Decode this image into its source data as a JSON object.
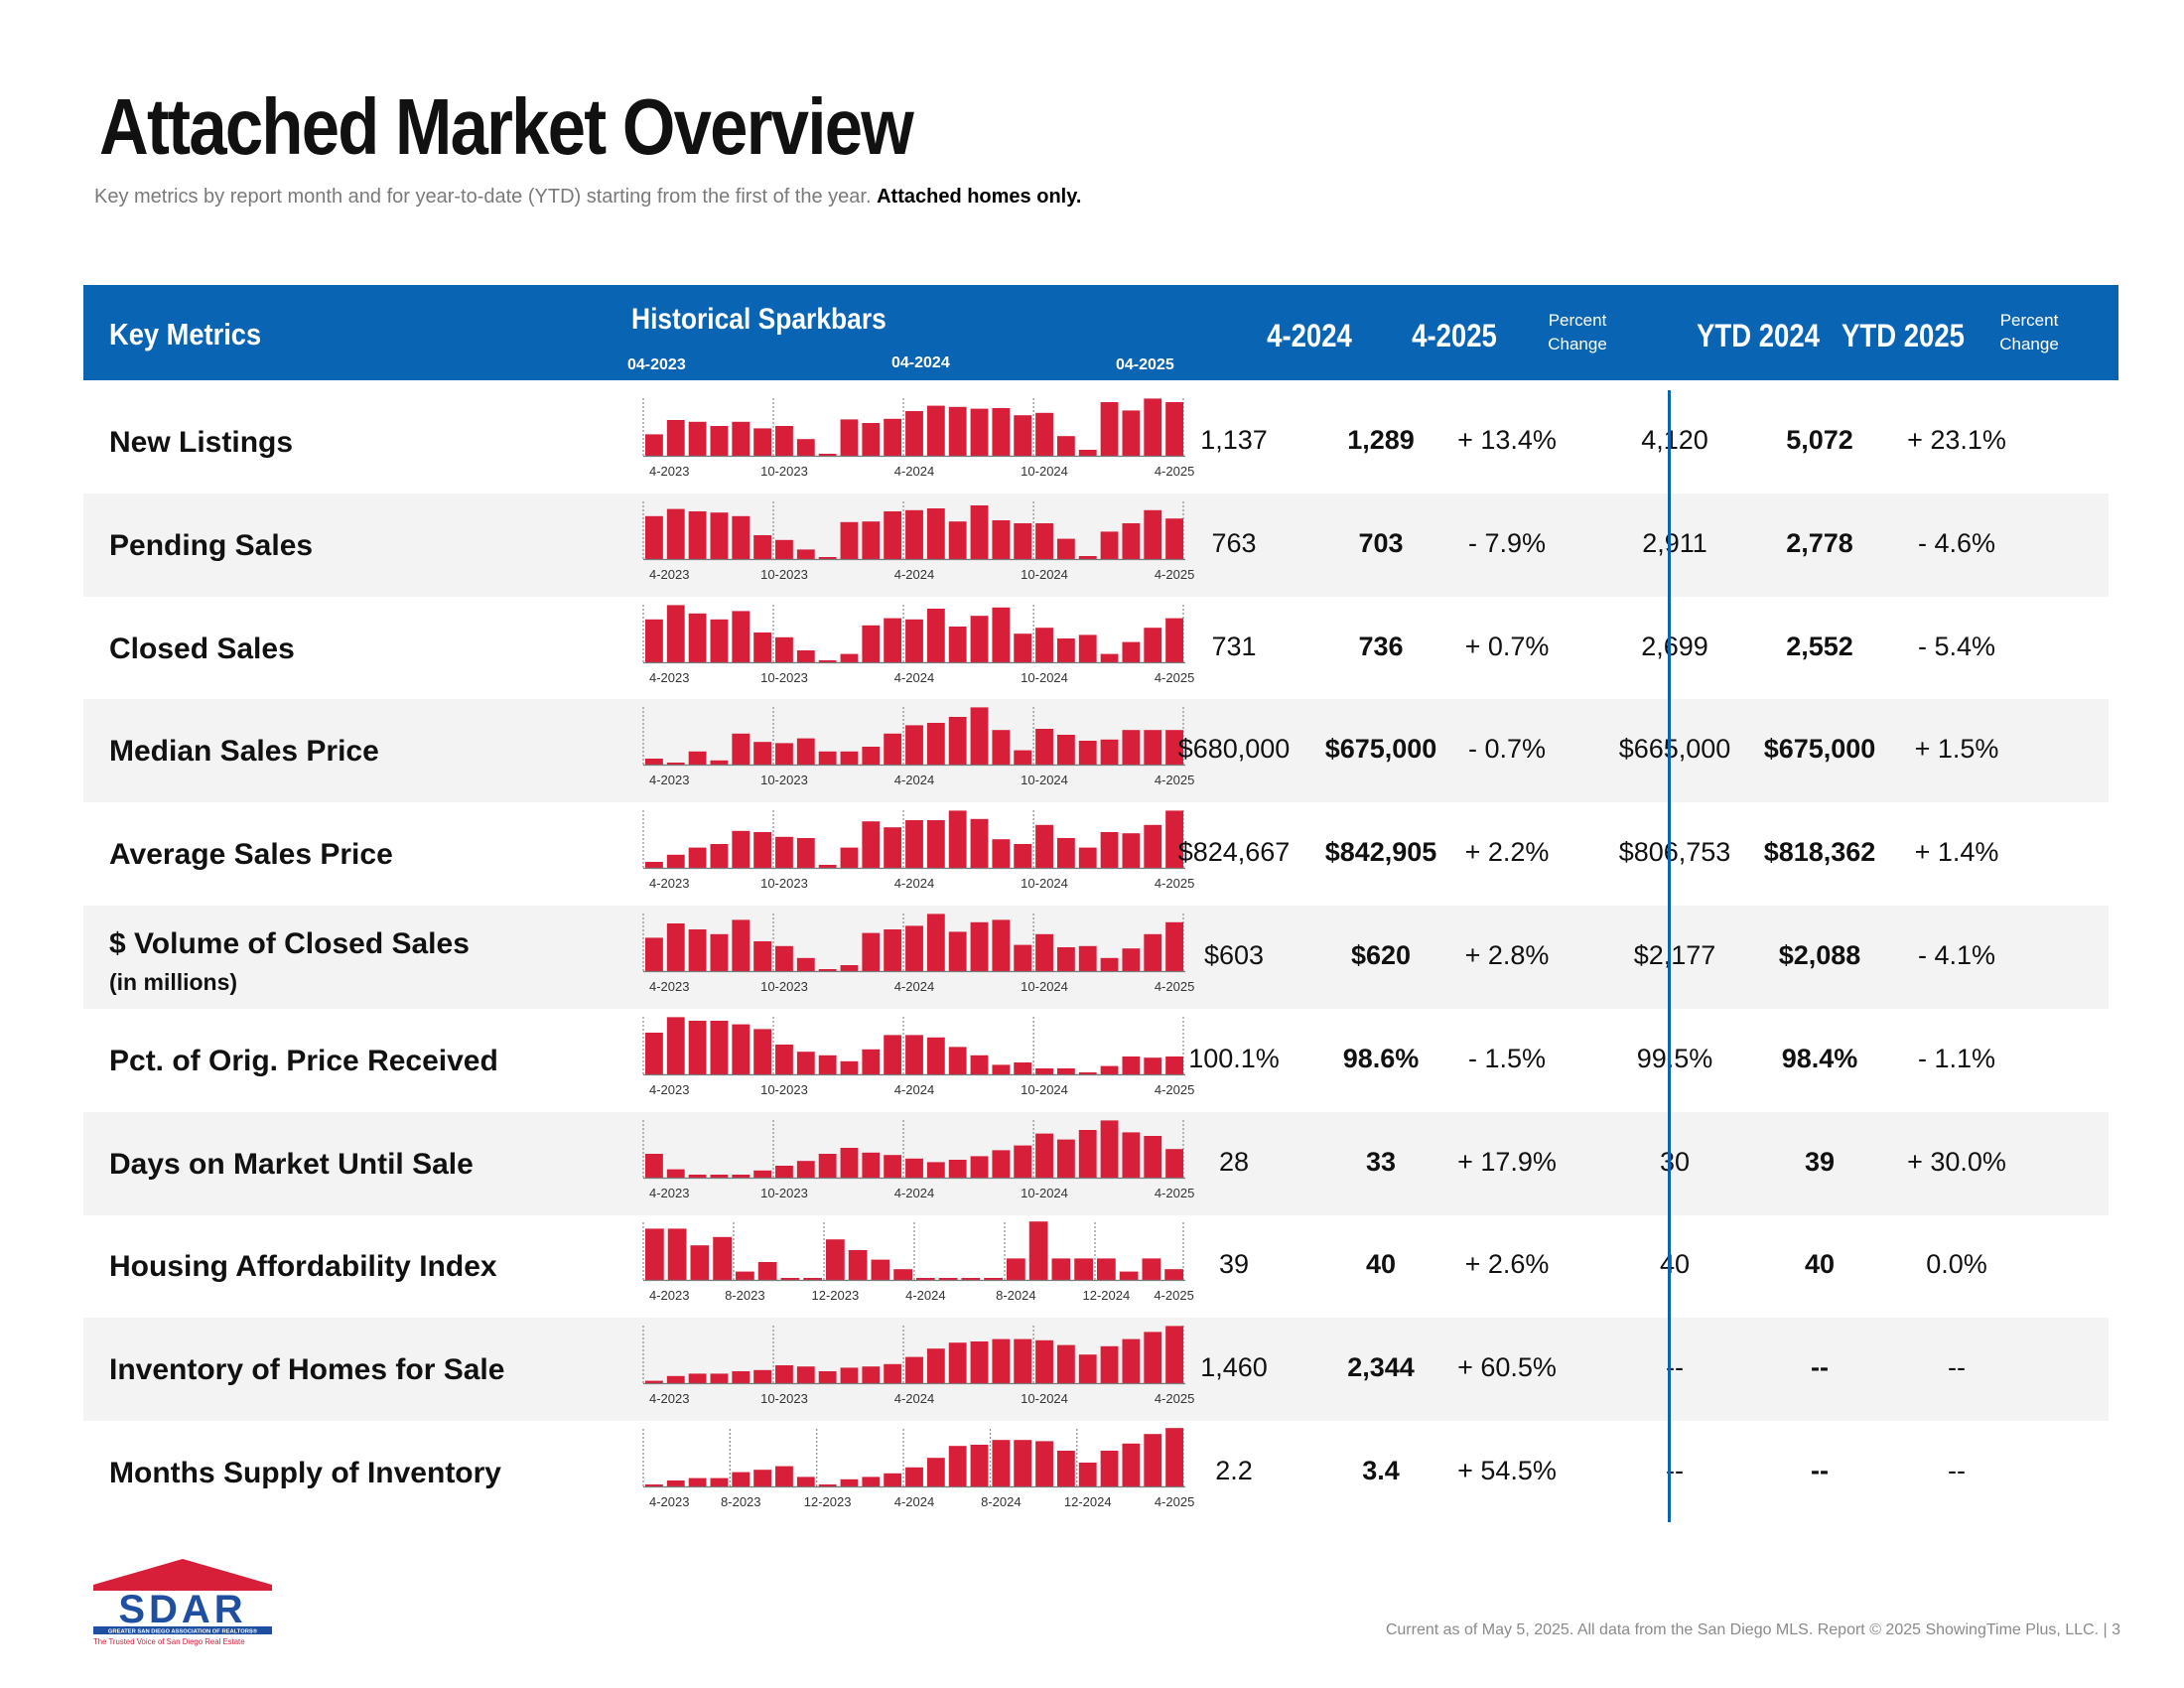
{
  "page": {
    "title": "Attached Market Overview",
    "subtitle": "Key metrics by report month and for year-to-date (YTD) starting from the first of the year.",
    "subtitle_bold": "Attached homes only.",
    "footer": "Current as of May 5, 2025. All data from the San Diego MLS. Report © 2025 ShowingTime Plus, LLC.  |  3"
  },
  "header": {
    "key_metrics": "Key Metrics",
    "historical_sparkbars": "Historical Sparkbars",
    "spark_dates": [
      "04-2023",
      "04-2024",
      "04-2025"
    ],
    "col_2024": "4-2024",
    "col_2025": "4-2025",
    "pct_line1": "Percent",
    "pct_line2": "Change",
    "ytd_2024": "YTD 2024",
    "ytd_2025": "YTD 2025"
  },
  "colors": {
    "header_bg": "#0a64b4",
    "bar": "#d71f3a",
    "row_shade": "#f3f3f3"
  },
  "logo": {
    "text": "SDAR",
    "tagline": "GREATER SAN DIEGO ASSOCIATION OF REALTORS®",
    "slogan": "The Trusted Voice of San Diego Real Estate"
  },
  "axis_labels": {
    "standard": [
      "4-2023",
      "10-2023",
      "4-2024",
      "10-2024",
      "4-2025"
    ],
    "quarterly": [
      "4-2023",
      "8-2023",
      "12-2023",
      "4-2024",
      "8-2024",
      "12-2024",
      "4-2025"
    ]
  },
  "metrics": [
    {
      "label": "New Listings",
      "sublabel": "",
      "v2024": "1,137",
      "v2025": "1,289",
      "pct": "+ 13.4%",
      "ytd2024": "4,120",
      "ytd2025": "5,072",
      "ytdpct": "+ 23.1%",
      "axis": "standard",
      "bars": [
        36,
        60,
        57,
        50,
        57,
        46,
        50,
        28,
        3,
        61,
        55,
        62,
        75,
        84,
        82,
        79,
        80,
        68,
        72,
        33,
        10,
        90,
        76,
        96,
        90
      ]
    },
    {
      "label": "Pending Sales",
      "sublabel": "",
      "v2024": "763",
      "v2025": "703",
      "pct": "- 7.9%",
      "ytd2024": "2,911",
      "ytd2025": "2,778",
      "ytdpct": "- 4.6%",
      "axis": "standard",
      "bars": [
        72,
        84,
        80,
        78,
        72,
        40,
        32,
        16,
        3,
        62,
        63,
        80,
        82,
        85,
        63,
        90,
        65,
        60,
        60,
        34,
        5,
        46,
        60,
        82,
        68
      ]
    },
    {
      "label": "Closed Sales",
      "sublabel": "",
      "v2024": "731",
      "v2025": "736",
      "pct": "+ 0.7%",
      "ytd2024": "2,699",
      "ytd2025": "2,552",
      "ytdpct": "- 5.4%",
      "axis": "standard",
      "bars": [
        72,
        96,
        82,
        72,
        86,
        50,
        42,
        20,
        3,
        14,
        62,
        74,
        72,
        90,
        60,
        78,
        92,
        48,
        58,
        40,
        46,
        14,
        34,
        58,
        74
      ]
    },
    {
      "label": "Median Sales Price",
      "sublabel": "",
      "v2024": "$680,000",
      "v2025": "$675,000",
      "pct": "- 0.7%",
      "ytd2024": "$665,000",
      "ytd2025": "$675,000",
      "ytdpct": "+ 1.5%",
      "axis": "standard",
      "bars": [
        10,
        3,
        22,
        7,
        52,
        38,
        36,
        44,
        22,
        22,
        30,
        52,
        66,
        70,
        80,
        96,
        58,
        24,
        60,
        50,
        40,
        42,
        58,
        58,
        58
      ]
    },
    {
      "label": "Average Sales Price",
      "sublabel": "",
      "v2024": "$824,667",
      "v2025": "$842,905",
      "pct": "+ 2.2%",
      "ytd2024": "$806,753",
      "ytd2025": "$818,362",
      "ytdpct": "+ 1.4%",
      "axis": "standard",
      "bars": [
        10,
        22,
        34,
        40,
        62,
        60,
        52,
        50,
        5,
        34,
        78,
        68,
        80,
        80,
        96,
        82,
        48,
        40,
        72,
        50,
        34,
        60,
        58,
        72,
        96
      ]
    },
    {
      "label": "$ Volume of Closed Sales",
      "sublabel": "(in millions)",
      "v2024": "$603",
      "v2025": "$620",
      "pct": "+ 2.8%",
      "ytd2024": "$2,177",
      "ytd2025": "$2,088",
      "ytdpct": "- 4.1%",
      "axis": "standard",
      "bars": [
        56,
        80,
        70,
        62,
        86,
        50,
        42,
        22,
        3,
        10,
        64,
        70,
        76,
        96,
        66,
        82,
        86,
        44,
        62,
        40,
        42,
        22,
        38,
        62,
        82
      ]
    },
    {
      "label": "Pct. of Orig. Price Received",
      "sublabel": "",
      "v2024": "100.1%",
      "v2025": "98.6%",
      "pct": "- 1.5%",
      "ytd2024": "99.5%",
      "ytd2025": "98.4%",
      "ytdpct": "- 1.1%",
      "axis": "standard",
      "bars": [
        70,
        96,
        90,
        90,
        84,
        76,
        50,
        38,
        32,
        22,
        42,
        66,
        66,
        62,
        46,
        32,
        16,
        20,
        10,
        10,
        3,
        14,
        30,
        28,
        30
      ]
    },
    {
      "label": "Days on Market Until Sale",
      "sublabel": "",
      "v2024": "28",
      "v2025": "33",
      "pct": "+ 17.9%",
      "ytd2024": "30",
      "ytd2025": "39",
      "ytdpct": "+ 30.0%",
      "axis": "standard",
      "bars": [
        40,
        14,
        5,
        5,
        5,
        12,
        20,
        28,
        40,
        50,
        42,
        38,
        32,
        26,
        30,
        36,
        46,
        54,
        74,
        64,
        80,
        96,
        76,
        70,
        48
      ]
    },
    {
      "label": "Housing Affordability Index",
      "sublabel": "",
      "v2024": "39",
      "v2025": "40",
      "pct": "+ 2.6%",
      "ytd2024": "40",
      "ytd2025": "40",
      "ytdpct": "0.0%",
      "axis": "quarterly",
      "bars": [
        86,
        86,
        58,
        72,
        14,
        30,
        3,
        3,
        68,
        50,
        34,
        18,
        3,
        3,
        3,
        3,
        36,
        98,
        36,
        36,
        36,
        14,
        36,
        18
      ]
    },
    {
      "label": "Inventory of Homes for Sale",
      "sublabel": "",
      "v2024": "1,460",
      "v2025": "2,344",
      "pct": "+ 60.5%",
      "ytd2024": "--",
      "ytd2025": "--",
      "ytdpct": "--",
      "axis": "standard",
      "bars": [
        4,
        12,
        16,
        16,
        20,
        22,
        30,
        28,
        20,
        26,
        28,
        32,
        44,
        58,
        68,
        70,
        74,
        74,
        72,
        64,
        48,
        62,
        74,
        86,
        96
      ]
    },
    {
      "label": "Months Supply of Inventory",
      "sublabel": "",
      "v2024": "2.2",
      "v2025": "3.4",
      "pct": "+ 54.5%",
      "ytd2024": "--",
      "ytd2025": "--",
      "ytdpct": "--",
      "axis": "quarterly",
      "bars": [
        3,
        10,
        14,
        14,
        24,
        28,
        34,
        16,
        3,
        12,
        16,
        22,
        32,
        48,
        68,
        70,
        78,
        78,
        76,
        60,
        40,
        60,
        72,
        88,
        98
      ]
    }
  ]
}
